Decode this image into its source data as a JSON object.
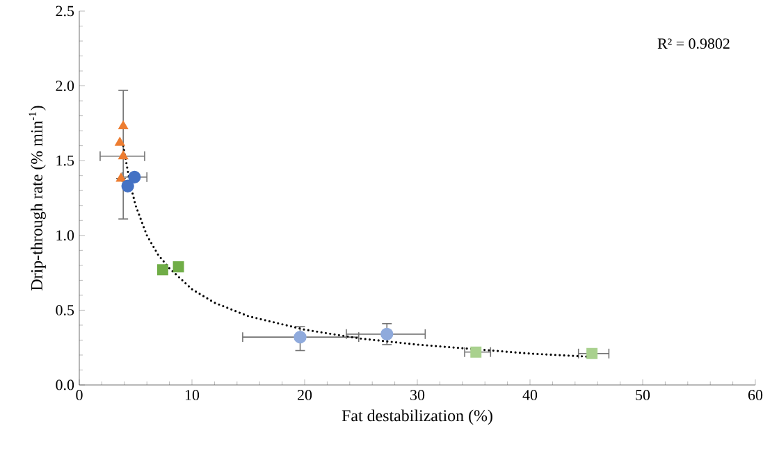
{
  "chart_data": {
    "type": "scatter",
    "xlabel": "Fat destabilization (%)",
    "ylabel": "Drip-through rate (% min$^{-1}$)",
    "annotations": [
      "R² = 0.9802"
    ],
    "xlim": [
      0,
      60
    ],
    "xticks": [
      0,
      10,
      20,
      30,
      40,
      50,
      60
    ],
    "ylim": [
      0,
      2.5
    ],
    "yticks": [
      {
        "value": 0,
        "label": "0.0"
      },
      {
        "value": 0.5,
        "label": "0.5"
      },
      {
        "value": 1,
        "label": "1.0"
      },
      {
        "value": 1.5,
        "label": "1.5"
      },
      {
        "value": 2,
        "label": "2.0"
      },
      {
        "value": 2.5,
        "label": "2.5"
      }
    ],
    "series": [
      {
        "marker": "triangle",
        "color": "#ed7d31",
        "x": [
          3.9,
          3.7
        ],
        "values": [
          1.53,
          1.38
        ],
        "errors": [
          [
            1.11,
            1.97
          ],
          null
        ],
        "xerrors": [
          [
            1.85,
            5.8
          ],
          null
        ]
      },
      {
        "marker": "triangle",
        "color": "#ed7d31",
        "x": [
          3.9,
          3.6
        ],
        "values": [
          1.73,
          1.62
        ]
      },
      {
        "marker": "circle",
        "color": "#8faadc",
        "x": [
          19.6,
          27.3
        ],
        "values": [
          0.32,
          0.34
        ],
        "errors": [
          [
            0.23,
            0.39
          ],
          [
            0.27,
            0.41
          ]
        ],
        "xerrors": [
          [
            14.5,
            24.8
          ],
          [
            23.7,
            30.7
          ]
        ]
      },
      {
        "marker": "circle",
        "color": "#4472c4",
        "x": [
          4.9,
          4.3
        ],
        "values": [
          1.39,
          1.33
        ],
        "xerrors": [
          [
            3.8,
            6.0
          ],
          null
        ]
      },
      {
        "marker": "square",
        "color": "#a9d18e",
        "x": [
          35.2,
          45.5
        ],
        "values": [
          0.22,
          0.21
        ],
        "xerrors": [
          [
            34.2,
            36.5
          ],
          [
            44.3,
            47.0
          ]
        ]
      },
      {
        "marker": "square",
        "color": "#70ad47",
        "x": [
          7.4,
          8.8
        ],
        "values": [
          0.77,
          0.79
        ]
      },
      {
        "type": "line",
        "marker": "none",
        "line_style": "dotted",
        "color": "#000000",
        "x": [
          3.9,
          4.5,
          5,
          6,
          7,
          8,
          10,
          12,
          15,
          20,
          25,
          30,
          35,
          40,
          45
        ],
        "values": [
          1.6,
          1.35,
          1.2,
          1.0,
          0.87,
          0.78,
          0.64,
          0.55,
          0.46,
          0.37,
          0.31,
          0.27,
          0.24,
          0.21,
          0.19
        ]
      }
    ]
  }
}
